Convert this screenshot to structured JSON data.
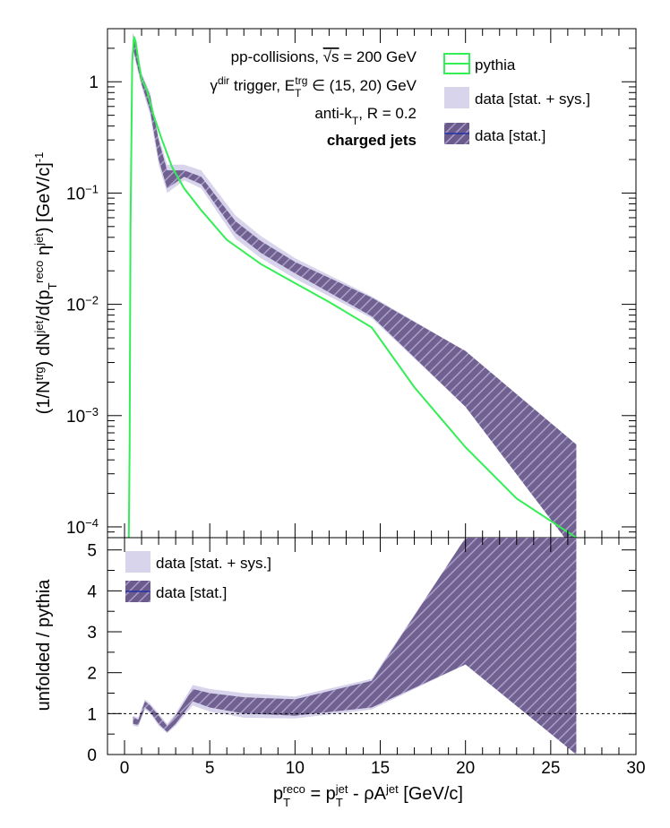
{
  "chart_data": [
    {
      "panel": "top",
      "type": "line",
      "yscale": "log",
      "xlim": [
        -1,
        30
      ],
      "ylim": [
        8e-05,
        3.0
      ],
      "ylabel": "(1/N^trg) dN^jet/d(p_T^reco η^jet) [GeV/c]^-1",
      "yticks": [
        {
          "value": 0.0001,
          "base": "10",
          "exp": "−4"
        },
        {
          "value": 0.001,
          "base": "10",
          "exp": "−3"
        },
        {
          "value": 0.01,
          "base": "10",
          "exp": "−2"
        },
        {
          "value": 0.1,
          "base": "10",
          "exp": "−1"
        },
        {
          "value": 1,
          "base": "1",
          "exp": ""
        }
      ],
      "annotations": [
        "pp-collisions, √s = 200 GeV",
        "γ^dir trigger, E_T^trg ∈ (15, 20) GeV",
        "anti-k_T, R = 0.2",
        "charged jets"
      ],
      "legend": {
        "placement": "top-right",
        "entries": [
          "pythia",
          "data [stat. + sys.]",
          "data [stat.]"
        ]
      },
      "series": [
        {
          "name": "pythia",
          "color": "#33ee55",
          "x": [
            0.25,
            0.3,
            0.35,
            0.45,
            0.55,
            0.65,
            0.8,
            1.0,
            1.3,
            1.7,
            2.2,
            2.8,
            3.5,
            4.5,
            6,
            8,
            10,
            12,
            14.5,
            17,
            20,
            23,
            26.5
          ],
          "y": [
            8e-05,
            0.0005,
            0.05,
            1.5,
            2.55,
            2.3,
            1.6,
            1.05,
            0.85,
            0.5,
            0.3,
            0.17,
            0.11,
            0.07,
            0.038,
            0.023,
            0.0155,
            0.0105,
            0.0062,
            0.0018,
            0.00052,
            0.00018,
            5.8e-05
          ]
        },
        {
          "name": "data [stat.]",
          "color": "#6b5b8c",
          "x": [
            0.5,
            1.0,
            1.5,
            2.0,
            2.5,
            3.5,
            4.5,
            6.5,
            8.0,
            10.0,
            14.5,
            20.0,
            26.5
          ],
          "y_low": [
            2.0,
            0.95,
            0.55,
            0.2,
            0.11,
            0.14,
            0.12,
            0.044,
            0.029,
            0.019,
            0.0078,
            0.0012,
            5.8e-05
          ],
          "y_high": [
            2.7,
            1.15,
            0.75,
            0.3,
            0.16,
            0.16,
            0.14,
            0.056,
            0.037,
            0.024,
            0.0115,
            0.0038,
            0.00055
          ]
        },
        {
          "name": "data [stat. + sys.]",
          "color": "#d8d4ec",
          "x": [
            0.5,
            1.0,
            1.5,
            2.0,
            2.5,
            3.5,
            4.5,
            6.5,
            8.0,
            10.0,
            14.5,
            20.0,
            26.5
          ],
          "y_low": [
            1.9,
            0.9,
            0.5,
            0.18,
            0.1,
            0.13,
            0.11,
            0.039,
            0.026,
            0.017,
            0.0075,
            0.0012,
            5.8e-05
          ],
          "y_high": [
            2.8,
            1.2,
            0.8,
            0.32,
            0.18,
            0.18,
            0.16,
            0.063,
            0.041,
            0.026,
            0.0118,
            0.0038,
            0.00055
          ]
        }
      ]
    },
    {
      "panel": "bottom",
      "type": "area",
      "xlim": [
        -1,
        30
      ],
      "ylim": [
        0,
        5.3
      ],
      "xlabel": "p_T^reco = p_T^jet - ρA^jet [GeV/c]",
      "ylabel": "unfolded / pythia",
      "xticks": [
        0,
        5,
        10,
        15,
        20,
        25,
        30
      ],
      "yticks": [
        0,
        1,
        2,
        3,
        4,
        5
      ],
      "reference_line": 1,
      "legend": {
        "placement": "top-left",
        "entries": [
          "data [stat. + sys.]",
          "data [stat.]"
        ]
      },
      "series": [
        {
          "name": "data [stat.]",
          "color": "#6b5b8c",
          "x": [
            0.5,
            0.8,
            1.2,
            1.5,
            2.0,
            2.5,
            3.0,
            4.0,
            5.0,
            7.0,
            10.0,
            14.5,
            20.0,
            26.5
          ],
          "y_low": [
            0.75,
            0.72,
            1.15,
            1.05,
            0.75,
            0.55,
            0.75,
            1.3,
            1.15,
            1.0,
            0.95,
            1.15,
            2.2,
            0.0
          ],
          "y_high": [
            0.92,
            0.85,
            1.3,
            1.2,
            0.95,
            0.7,
            0.95,
            1.6,
            1.5,
            1.4,
            1.35,
            1.8,
            5.3,
            5.3
          ]
        },
        {
          "name": "data [stat. + sys.]",
          "color": "#d8d4ec",
          "x": [
            0.5,
            0.8,
            1.2,
            1.5,
            2.0,
            2.5,
            3.0,
            4.0,
            5.0,
            7.0,
            10.0,
            14.5,
            20.0,
            26.5
          ],
          "y_low": [
            0.7,
            0.68,
            1.1,
            1.0,
            0.7,
            0.52,
            0.7,
            1.2,
            1.05,
            0.9,
            0.88,
            1.1,
            2.2,
            0.0
          ],
          "y_high": [
            0.95,
            0.9,
            1.35,
            1.25,
            1.0,
            0.75,
            1.0,
            1.7,
            1.6,
            1.5,
            1.42,
            1.85,
            5.3,
            5.3
          ]
        }
      ]
    }
  ]
}
